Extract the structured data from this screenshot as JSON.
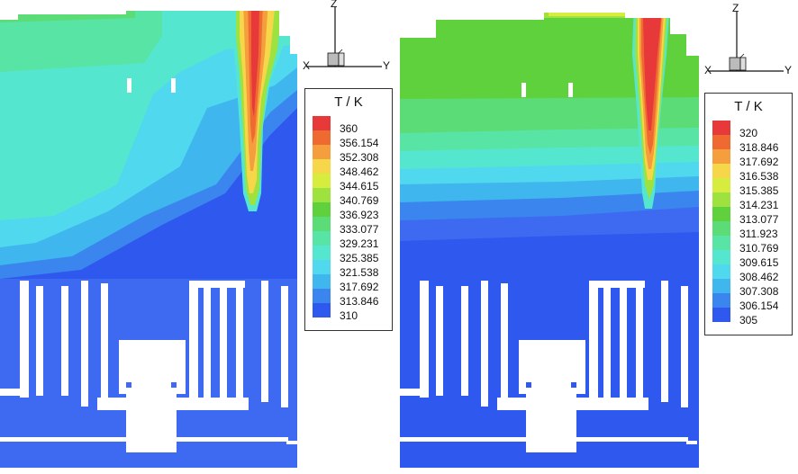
{
  "legend_title": "T / K",
  "axis_labels": {
    "z": "Z",
    "x": "X",
    "y": "Y"
  },
  "panels": [
    {
      "id": "left",
      "levels": [
        "360",
        "356.154",
        "352.308",
        "348.462",
        "344.615",
        "340.769",
        "336.923",
        "333.077",
        "329.231",
        "325.385",
        "321.538",
        "317.692",
        "313.846",
        "310"
      ]
    },
    {
      "id": "right",
      "levels": [
        "320",
        "318.846",
        "317.692",
        "316.538",
        "315.385",
        "314.231",
        "313.077",
        "311.923",
        "310.769",
        "309.615",
        "308.462",
        "307.308",
        "306.154",
        "305"
      ]
    }
  ],
  "colors": [
    "#e8393a",
    "#ef6a31",
    "#f49e3d",
    "#f7d74a",
    "#d6ed40",
    "#9ee23f",
    "#5fd13d",
    "#5bdc76",
    "#58e4a5",
    "#55e6d0",
    "#50d8ef",
    "#3fb6ee",
    "#3a86ee",
    "#2f58ee"
  ]
}
